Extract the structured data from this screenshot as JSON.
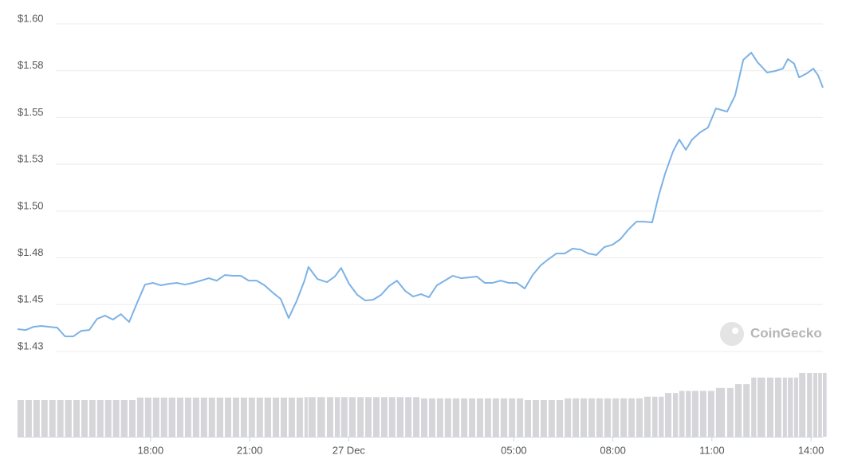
{
  "chart_data": {
    "type": "line",
    "watermark": "CoinGecko",
    "x": [
      -10.03,
      -9.79,
      -9.55,
      -9.31,
      -9.07,
      -8.83,
      -8.59,
      -8.34,
      -8.1,
      -7.86,
      -7.62,
      -7.38,
      -7.14,
      -6.9,
      -6.65,
      -6.41,
      -6.17,
      -5.93,
      -5.69,
      -5.45,
      -5.2,
      -4.96,
      -4.72,
      -4.48,
      -4.24,
      -4.0,
      -3.75,
      -3.51,
      -3.27,
      -3.03,
      -2.79,
      -2.55,
      -2.3,
      -2.06,
      -1.82,
      -1.58,
      -1.34,
      -1.22,
      -0.95,
      -0.66,
      -0.42,
      -0.23,
      0.01,
      0.26,
      0.5,
      0.74,
      0.98,
      1.22,
      1.46,
      1.71,
      1.95,
      2.19,
      2.43,
      2.67,
      2.91,
      3.15,
      3.4,
      3.64,
      3.88,
      4.12,
      4.36,
      4.6,
      4.85,
      5.09,
      5.33,
      5.57,
      5.81,
      6.05,
      6.29,
      6.54,
      6.78,
      7.02,
      7.26,
      7.5,
      7.74,
      7.99,
      8.23,
      8.47,
      8.71,
      8.95,
      9.19,
      9.39,
      9.58,
      9.82,
      10.01,
      10.21,
      10.4,
      10.64,
      10.88,
      11.12,
      11.46,
      11.7,
      11.95,
      12.19,
      12.38,
      12.67,
      12.91,
      13.15,
      13.3,
      13.49,
      13.64,
      13.88,
      14.07,
      14.22,
      14.36
    ],
    "series": [
      {
        "color": "#7cb2e6",
        "values": [
          1.4348,
          1.4343,
          1.436,
          1.4365,
          1.436,
          1.4356,
          1.4309,
          1.4309,
          1.4339,
          1.4343,
          1.4403,
          1.442,
          1.4399,
          1.4428,
          1.4386,
          1.4488,
          1.4586,
          1.4595,
          1.4582,
          1.459,
          1.4595,
          1.4586,
          1.4595,
          1.4607,
          1.462,
          1.4607,
          1.4637,
          1.4633,
          1.4633,
          1.4607,
          1.4607,
          1.4582,
          1.4543,
          1.4509,
          1.4407,
          1.4497,
          1.4607,
          1.468,
          1.4616,
          1.4599,
          1.4629,
          1.4675,
          1.459,
          1.4531,
          1.4501,
          1.4505,
          1.4531,
          1.4578,
          1.4607,
          1.4552,
          1.4522,
          1.4535,
          1.4518,
          1.4582,
          1.4607,
          1.4633,
          1.462,
          1.4624,
          1.4629,
          1.4595,
          1.4595,
          1.4607,
          1.4595,
          1.4595,
          1.4565,
          1.4637,
          1.4688,
          1.4722,
          1.4752,
          1.4752,
          1.4778,
          1.4773,
          1.4752,
          1.4744,
          1.4786,
          1.4799,
          1.4829,
          1.488,
          1.4922,
          1.4922,
          1.4918,
          1.5063,
          1.5178,
          1.5297,
          1.5361,
          1.5306,
          1.5361,
          1.5399,
          1.5425,
          1.5527,
          1.551,
          1.5595,
          1.5787,
          1.5825,
          1.5774,
          1.5719,
          1.5727,
          1.574,
          1.5791,
          1.5766,
          1.5693,
          1.5715,
          1.574,
          1.5702,
          1.5638
        ]
      },
      {
        "type": "bar",
        "axis": "y2",
        "color": "#d6d6da",
        "values": [
          8.8,
          8.8,
          8.8,
          8.8,
          8.8,
          8.8,
          8.8,
          8.8,
          8.8,
          8.8,
          8.8,
          8.8,
          8.8,
          8.8,
          8.8,
          9.4,
          9.4,
          9.4,
          9.4,
          9.4,
          9.4,
          9.4,
          9.4,
          9.4,
          9.4,
          9.4,
          9.4,
          9.4,
          9.4,
          9.4,
          9.4,
          9.4,
          9.4,
          9.4,
          9.4,
          9.4,
          9.5,
          9.5,
          9.5,
          9.5,
          9.5,
          9.5,
          9.5,
          9.5,
          9.5,
          9.5,
          9.5,
          9.5,
          9.5,
          9.5,
          9.5,
          9.2,
          9.2,
          9.2,
          9.2,
          9.2,
          9.2,
          9.2,
          9.2,
          9.2,
          9.2,
          9.2,
          9.2,
          9.2,
          8.8,
          8.8,
          8.8,
          8.8,
          8.8,
          9.2,
          9.2,
          9.2,
          9.2,
          9.2,
          9.2,
          9.2,
          9.2,
          9.2,
          9.2,
          9.6,
          9.6,
          9.6,
          10.5,
          10.5,
          11.0,
          11.0,
          11.0,
          11.0,
          11.0,
          11.7,
          11.7,
          12.6,
          12.6,
          14.2,
          14.2,
          14.2,
          14.2,
          14.2,
          14.2,
          14.2,
          15.3,
          15.3,
          15.3,
          15.3,
          15.3
        ]
      }
    ],
    "xlim": [
      -10.03,
      14.36
    ],
    "xticks": [
      {
        "value": -6,
        "label": "18:00"
      },
      {
        "value": -3,
        "label": "21:00"
      },
      {
        "value": 0,
        "label": "27 Dec"
      },
      {
        "value": 5,
        "label": "05:00"
      },
      {
        "value": 8,
        "label": "08:00"
      },
      {
        "value": 11,
        "label": "11:00"
      },
      {
        "value": 14,
        "label": "14:00"
      }
    ],
    "ylim": [
      1.3773,
      1.6
    ],
    "yticks": [
      {
        "value": 1.6,
        "label": "$1.60"
      },
      {
        "value": 1.575,
        "label": "$1.58"
      },
      {
        "value": 1.55,
        "label": "$1.55"
      },
      {
        "value": 1.525,
        "label": "$1.53"
      },
      {
        "value": 1.5,
        "label": "$1.50"
      },
      {
        "value": 1.475,
        "label": "$1.48"
      },
      {
        "value": 1.45,
        "label": "$1.45"
      },
      {
        "value": 1.425,
        "label": "$1.43"
      }
    ],
    "y2lim": [
      0,
      100
    ],
    "grid": true
  }
}
